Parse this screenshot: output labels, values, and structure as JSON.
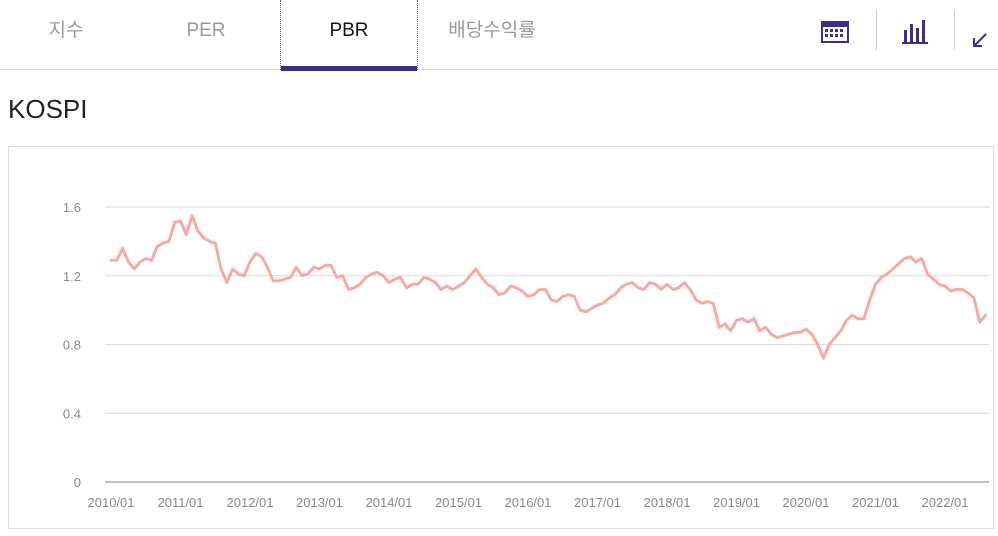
{
  "tabs": [
    {
      "label": "지수",
      "active": false
    },
    {
      "label": "PER",
      "active": false
    },
    {
      "label": "PBR",
      "active": true
    },
    {
      "label": "배당수익률",
      "active": false
    }
  ],
  "accent_color": "#3d2d8f",
  "toolbar": {
    "icons": [
      "calendar-icon",
      "bar-chart-icon",
      "expand-arrow-icon"
    ]
  },
  "chart_title": "KOSPI",
  "chart_data": {
    "type": "line",
    "title": "",
    "xlabel": "",
    "ylabel": "",
    "ylim": [
      0,
      1.6
    ],
    "y_ticks": [
      "0",
      "0.4",
      "0.8",
      "1.2",
      "1.6"
    ],
    "x_ticks": [
      "2010/01",
      "2011/01",
      "2012/01",
      "2013/01",
      "2014/01",
      "2015/01",
      "2016/01",
      "2017/01",
      "2018/01",
      "2019/01",
      "2020/01",
      "2021/01",
      "2022/01"
    ],
    "grid": true,
    "series": [
      {
        "color": "#f7aaa4",
        "points": [
          [
            "2010/01",
            1.29
          ],
          [
            "2010/02",
            1.29
          ],
          [
            "2010/03",
            1.36
          ],
          [
            "2010/04",
            1.28
          ],
          [
            "2010/05",
            1.24
          ],
          [
            "2010/06",
            1.28
          ],
          [
            "2010/07",
            1.3
          ],
          [
            "2010/08",
            1.29
          ],
          [
            "2010/09",
            1.37
          ],
          [
            "2010/10",
            1.39
          ],
          [
            "2010/11",
            1.4
          ],
          [
            "2010/12",
            1.51
          ],
          [
            "2011/01",
            1.52
          ],
          [
            "2011/02",
            1.44
          ],
          [
            "2011/03",
            1.55
          ],
          [
            "2011/04",
            1.46
          ],
          [
            "2011/05",
            1.42
          ],
          [
            "2011/06",
            1.4
          ],
          [
            "2011/07",
            1.39
          ],
          [
            "2011/08",
            1.24
          ],
          [
            "2011/09",
            1.16
          ],
          [
            "2011/10",
            1.24
          ],
          [
            "2011/11",
            1.21
          ],
          [
            "2011/12",
            1.2
          ],
          [
            "2012/01",
            1.28
          ],
          [
            "2012/02",
            1.33
          ],
          [
            "2012/03",
            1.31
          ],
          [
            "2012/04",
            1.25
          ],
          [
            "2012/05",
            1.17
          ],
          [
            "2012/06",
            1.17
          ],
          [
            "2012/07",
            1.18
          ],
          [
            "2012/08",
            1.19
          ],
          [
            "2012/09",
            1.25
          ],
          [
            "2012/10",
            1.2
          ],
          [
            "2012/11",
            1.21
          ],
          [
            "2012/12",
            1.25
          ],
          [
            "2013/01",
            1.24
          ],
          [
            "2013/02",
            1.26
          ],
          [
            "2013/03",
            1.26
          ],
          [
            "2013/04",
            1.19
          ],
          [
            "2013/05",
            1.2
          ],
          [
            "2013/06",
            1.12
          ],
          [
            "2013/07",
            1.13
          ],
          [
            "2013/08",
            1.15
          ],
          [
            "2013/09",
            1.19
          ],
          [
            "2013/10",
            1.21
          ],
          [
            "2013/11",
            1.22
          ],
          [
            "2013/12",
            1.2
          ],
          [
            "2014/01",
            1.16
          ],
          [
            "2014/02",
            1.18
          ],
          [
            "2014/03",
            1.19
          ],
          [
            "2014/04",
            1.13
          ],
          [
            "2014/05",
            1.15
          ],
          [
            "2014/06",
            1.15
          ],
          [
            "2014/07",
            1.19
          ],
          [
            "2014/08",
            1.18
          ],
          [
            "2014/09",
            1.16
          ],
          [
            "2014/10",
            1.12
          ],
          [
            "2014/11",
            1.14
          ],
          [
            "2014/12",
            1.12
          ],
          [
            "2015/01",
            1.14
          ],
          [
            "2015/02",
            1.16
          ],
          [
            "2015/03",
            1.2
          ],
          [
            "2015/04",
            1.24
          ],
          [
            "2015/05",
            1.19
          ],
          [
            "2015/06",
            1.15
          ],
          [
            "2015/07",
            1.13
          ],
          [
            "2015/08",
            1.09
          ],
          [
            "2015/09",
            1.1
          ],
          [
            "2015/10",
            1.14
          ],
          [
            "2015/11",
            1.13
          ],
          [
            "2015/12",
            1.11
          ],
          [
            "2016/01",
            1.08
          ],
          [
            "2016/02",
            1.09
          ],
          [
            "2016/03",
            1.12
          ],
          [
            "2016/04",
            1.12
          ],
          [
            "2016/05",
            1.06
          ],
          [
            "2016/06",
            1.05
          ],
          [
            "2016/07",
            1.08
          ],
          [
            "2016/08",
            1.09
          ],
          [
            "2016/09",
            1.08
          ],
          [
            "2016/10",
            1.0
          ],
          [
            "2016/11",
            0.99
          ],
          [
            "2016/12",
            1.01
          ],
          [
            "2017/01",
            1.03
          ],
          [
            "2017/02",
            1.04
          ],
          [
            "2017/03",
            1.07
          ],
          [
            "2017/04",
            1.09
          ],
          [
            "2017/05",
            1.13
          ],
          [
            "2017/06",
            1.15
          ],
          [
            "2017/07",
            1.16
          ],
          [
            "2017/08",
            1.13
          ],
          [
            "2017/09",
            1.12
          ],
          [
            "2017/10",
            1.16
          ],
          [
            "2017/11",
            1.15
          ],
          [
            "2017/12",
            1.12
          ],
          [
            "2018/01",
            1.15
          ],
          [
            "2018/02",
            1.12
          ],
          [
            "2018/03",
            1.13
          ],
          [
            "2018/04",
            1.16
          ],
          [
            "2018/05",
            1.12
          ],
          [
            "2018/06",
            1.06
          ],
          [
            "2018/07",
            1.04
          ],
          [
            "2018/08",
            1.05
          ],
          [
            "2018/09",
            1.04
          ],
          [
            "2018/10",
            0.9
          ],
          [
            "2018/11",
            0.92
          ],
          [
            "2018/12",
            0.88
          ],
          [
            "2019/01",
            0.94
          ],
          [
            "2019/02",
            0.95
          ],
          [
            "2019/03",
            0.93
          ],
          [
            "2019/04",
            0.95
          ],
          [
            "2019/05",
            0.88
          ],
          [
            "2019/06",
            0.9
          ],
          [
            "2019/07",
            0.86
          ],
          [
            "2019/08",
            0.84
          ],
          [
            "2019/09",
            0.85
          ],
          [
            "2019/10",
            0.86
          ],
          [
            "2019/11",
            0.87
          ],
          [
            "2019/12",
            0.87
          ],
          [
            "2020/01",
            0.89
          ],
          [
            "2020/02",
            0.86
          ],
          [
            "2020/03",
            0.8
          ],
          [
            "2020/04",
            0.72
          ],
          [
            "2020/05",
            0.8
          ],
          [
            "2020/06",
            0.84
          ],
          [
            "2020/07",
            0.88
          ],
          [
            "2020/08",
            0.94
          ],
          [
            "2020/09",
            0.97
          ],
          [
            "2020/10",
            0.95
          ],
          [
            "2020/11",
            0.95
          ],
          [
            "2020/12",
            1.06
          ],
          [
            "2021/01",
            1.15
          ],
          [
            "2021/02",
            1.19
          ],
          [
            "2021/03",
            1.21
          ],
          [
            "2021/04",
            1.24
          ],
          [
            "2021/05",
            1.27
          ],
          [
            "2021/06",
            1.3
          ],
          [
            "2021/07",
            1.31
          ],
          [
            "2021/08",
            1.28
          ],
          [
            "2021/09",
            1.3
          ],
          [
            "2021/10",
            1.21
          ],
          [
            "2021/11",
            1.18
          ],
          [
            "2021/12",
            1.15
          ],
          [
            "2022/01",
            1.14
          ],
          [
            "2022/02",
            1.11
          ],
          [
            "2022/03",
            1.12
          ],
          [
            "2022/04",
            1.12
          ],
          [
            "2022/05",
            1.1
          ],
          [
            "2022/06",
            1.07
          ],
          [
            "2022/07",
            0.93
          ],
          [
            "2022/08",
            0.97
          ]
        ]
      }
    ]
  }
}
